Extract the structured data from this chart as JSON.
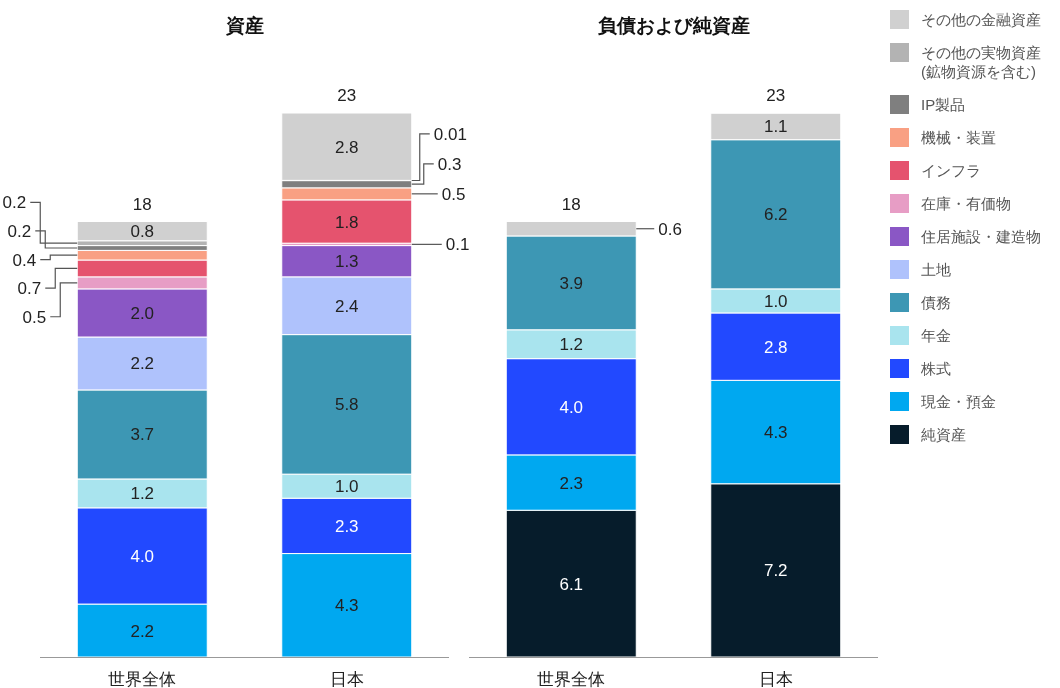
{
  "chart_data": [
    {
      "type": "bar",
      "stacked": true,
      "title": "資産",
      "categories": [
        "世界全体",
        "日本"
      ],
      "totals": [
        "18",
        "23"
      ],
      "legend": "right",
      "series": [
        {
          "name": "現金・預金",
          "color": "#00a8f0",
          "values": [
            2.2,
            4.3
          ],
          "value_labels": [
            "2.2",
            "4.3"
          ]
        },
        {
          "name": "株式",
          "color": "#2249ff",
          "values": [
            4.0,
            2.3
          ],
          "value_labels": [
            "4.0",
            "2.3"
          ]
        },
        {
          "name": "年金",
          "color": "#a9e4ee",
          "values": [
            1.2,
            1.0
          ],
          "value_labels": [
            "1.2",
            "1.0"
          ]
        },
        {
          "name": "債務",
          "color": "#3d97b4",
          "values": [
            3.7,
            5.8
          ],
          "value_labels": [
            "3.7",
            "5.8"
          ]
        },
        {
          "name": "土地",
          "color": "#afc2fc",
          "values": [
            2.2,
            2.4
          ],
          "value_labels": [
            "2.2",
            "2.4"
          ]
        },
        {
          "name": "住居施設・建造物",
          "color": "#8a57c5",
          "values": [
            2.0,
            1.3
          ],
          "value_labels": [
            "2.0",
            "1.3"
          ]
        },
        {
          "name": "在庫・有価物",
          "color": "#e79dc5",
          "values": [
            0.5,
            0.1
          ],
          "value_labels": [
            "0.5",
            "0.1"
          ]
        },
        {
          "name": "インフラ",
          "color": "#e5536e",
          "values": [
            0.7,
            1.8
          ],
          "value_labels": [
            "0.7",
            "1.8"
          ]
        },
        {
          "name": "機械・装置",
          "color": "#f9a083",
          "values": [
            0.4,
            0.5
          ],
          "value_labels": [
            "0.4",
            "0.5"
          ]
        },
        {
          "name": "IP製品",
          "color": "#7f7f7f",
          "values": [
            0.2,
            0.3
          ],
          "value_labels": [
            "0.2",
            "0.3"
          ]
        },
        {
          "name": "その他の実物資産 (鉱物資源を含む)",
          "color": "#b3b3b3",
          "values": [
            0.2,
            0.01
          ],
          "value_labels": [
            "0.2",
            "0.01"
          ]
        },
        {
          "name": "その他の金融資産",
          "color": "#d0d0d0",
          "values": [
            0.8,
            2.8
          ],
          "value_labels": [
            "0.8",
            "2.8"
          ]
        }
      ]
    },
    {
      "type": "bar",
      "stacked": true,
      "title": "負債および純資産",
      "categories": [
        "世界全体",
        "日本"
      ],
      "totals": [
        "18",
        "23"
      ],
      "legend": "right",
      "series": [
        {
          "name": "純資産",
          "color": "#061c2b",
          "values": [
            6.1,
            7.2
          ],
          "value_labels": [
            "6.1",
            "7.2"
          ]
        },
        {
          "name": "現金・預金",
          "color": "#00a8f0",
          "values": [
            2.3,
            4.3
          ],
          "value_labels": [
            "2.3",
            "4.3"
          ]
        },
        {
          "name": "株式",
          "color": "#2249ff",
          "values": [
            4.0,
            2.8
          ],
          "value_labels": [
            "4.0",
            "2.8"
          ]
        },
        {
          "name": "年金",
          "color": "#a9e4ee",
          "values": [
            1.2,
            1.0
          ],
          "value_labels": [
            "1.2",
            "1.0"
          ]
        },
        {
          "name": "債務",
          "color": "#3d97b4",
          "values": [
            3.9,
            6.2
          ],
          "value_labels": [
            "3.9",
            "6.2"
          ]
        },
        {
          "name": "その他の金融資産",
          "color": "#d0d0d0",
          "values": [
            0.6,
            1.1
          ],
          "value_labels": [
            "0.6",
            "1.1"
          ]
        }
      ]
    }
  ]
}
